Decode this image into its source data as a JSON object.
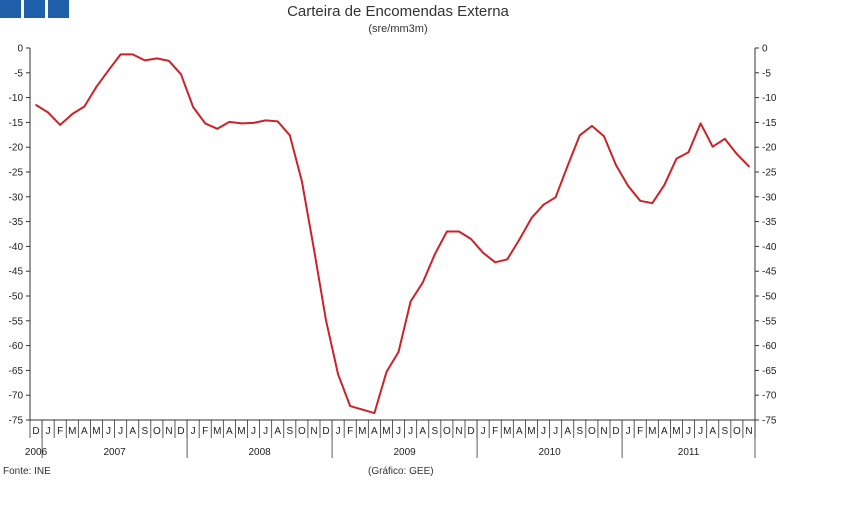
{
  "header": {
    "title": "Carteira de Encomendas Externa",
    "subtitle": "(sre/mm3m)",
    "logo_icon": "gee-logo-icon"
  },
  "footer": {
    "source": "Fonte: INE",
    "credit": "(Gráfico: GEE)"
  },
  "colors": {
    "line": "#cc2229",
    "axis": "#333333"
  },
  "chart_data": {
    "type": "line",
    "title": "Carteira de Encomendas Externa",
    "subtitle": "(sre/mm3m)",
    "xlabel": "",
    "ylabel": "",
    "ylim": [
      -75,
      0
    ],
    "y_ticks": [
      0,
      -5,
      -10,
      -15,
      -20,
      -25,
      -30,
      -35,
      -40,
      -45,
      -50,
      -55,
      -60,
      -65,
      -70,
      -75
    ],
    "y_axes": "left-and-right",
    "grid": false,
    "legend": "none",
    "month_labels": [
      "D",
      "J",
      "F",
      "M",
      "A",
      "M",
      "J",
      "J",
      "A",
      "S",
      "O",
      "N",
      "D",
      "J",
      "F",
      "M",
      "A",
      "M",
      "J",
      "J",
      "A",
      "S",
      "O",
      "N",
      "D",
      "J",
      "F",
      "M",
      "A",
      "M",
      "J",
      "J",
      "A",
      "S",
      "O",
      "N",
      "D",
      "J",
      "F",
      "M",
      "A",
      "M",
      "J",
      "J",
      "A",
      "S",
      "O",
      "N",
      "D",
      "J",
      "F",
      "M",
      "A",
      "M",
      "J",
      "J",
      "A",
      "S",
      "O",
      "N"
    ],
    "year_labels": [
      {
        "label": "2006",
        "start": 0,
        "end": 0
      },
      {
        "label": "2007",
        "start": 1,
        "end": 12
      },
      {
        "label": "2008",
        "start": 13,
        "end": 24
      },
      {
        "label": "2009",
        "start": 25,
        "end": 36
      },
      {
        "label": "2010",
        "start": 37,
        "end": 48
      },
      {
        "label": "2011",
        "start": 49,
        "end": 59
      }
    ],
    "series": [
      {
        "values": [
          -11.5,
          -13,
          -15.5,
          -13.3,
          -11.8,
          -7.8,
          -4.5,
          -1.3,
          -1.3,
          -2.5,
          -2.1,
          -2.6,
          -5.3,
          -11.9,
          -15.2,
          -16.3,
          -14.9,
          -15.2,
          -15.1,
          -14.6,
          -14.8,
          -17.6,
          -26.9,
          -40.6,
          -54.9,
          -65.8,
          -72.2,
          -72.9,
          -73.6,
          -65.3,
          -61.3,
          -51.1,
          -47.3,
          -41.6,
          -37,
          -37,
          -38.5,
          -41.3,
          -43.2,
          -42.6,
          -38.6,
          -34.3,
          -31.6,
          -30.1,
          -23.7,
          -17.6,
          -15.7,
          -17.8,
          -23.6,
          -27.8,
          -30.8,
          -31.3,
          -27.6,
          -22.3,
          -21,
          -15.2,
          -19.9,
          -18.3,
          -21.4,
          -23.9
        ]
      }
    ]
  }
}
